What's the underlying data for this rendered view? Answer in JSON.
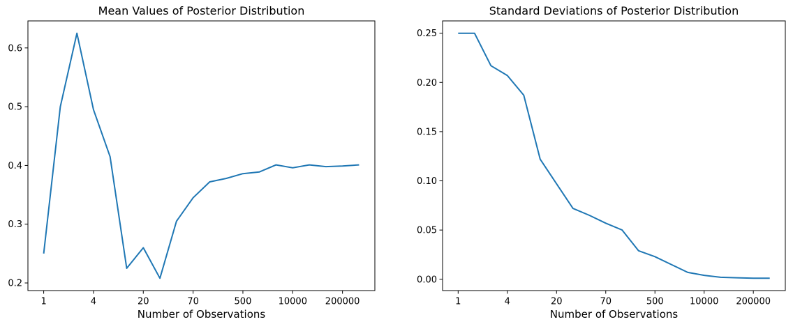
{
  "figure": {
    "background": "#ffffff",
    "text_color": "#000000",
    "line_color": "#1f77b4"
  },
  "chart_data": [
    {
      "type": "line",
      "title": "Mean Values of Posterior Distribution",
      "xlabel": "Number of Observations",
      "ylabel": "",
      "n_points": 20,
      "x_tick_indices": [
        0,
        3,
        6,
        9,
        12,
        15,
        18
      ],
      "x_tick_labels": [
        "1",
        "4",
        "20",
        "70",
        "500",
        "10000",
        "200000"
      ],
      "y_tick_values": [
        0.2,
        0.3,
        0.4,
        0.5,
        0.6
      ],
      "y_tick_labels": [
        "0.2",
        "0.3",
        "0.4",
        "0.5",
        "0.6"
      ],
      "ylim": [
        0.187,
        0.646
      ],
      "values": [
        0.25,
        0.5,
        0.625,
        0.495,
        0.415,
        0.225,
        0.26,
        0.208,
        0.305,
        0.345,
        0.372,
        0.378,
        0.386,
        0.389,
        0.401,
        0.396,
        0.401,
        0.398,
        0.399,
        0.401
      ],
      "line_color": "#1f77b4",
      "grid": false,
      "legend": null
    },
    {
      "type": "line",
      "title": "Standard Deviations of Posterior Distribution",
      "xlabel": "Number of Observations",
      "ylabel": "",
      "n_points": 20,
      "x_tick_indices": [
        0,
        3,
        6,
        9,
        12,
        15,
        18
      ],
      "x_tick_labels": [
        "1",
        "4",
        "20",
        "70",
        "500",
        "10000",
        "200000"
      ],
      "y_tick_values": [
        0.0,
        0.05,
        0.1,
        0.15,
        0.2,
        0.25
      ],
      "y_tick_labels": [
        "0.00",
        "0.05",
        "0.10",
        "0.15",
        "0.20",
        "0.25"
      ],
      "ylim": [
        -0.0115,
        0.2625
      ],
      "values": [
        0.25,
        0.25,
        0.217,
        0.207,
        0.187,
        0.122,
        0.097,
        0.072,
        0.065,
        0.057,
        0.05,
        0.029,
        0.023,
        0.015,
        0.007,
        0.004,
        0.002,
        0.0015,
        0.001,
        0.001
      ],
      "line_color": "#1f77b4",
      "grid": false,
      "legend": null
    }
  ]
}
